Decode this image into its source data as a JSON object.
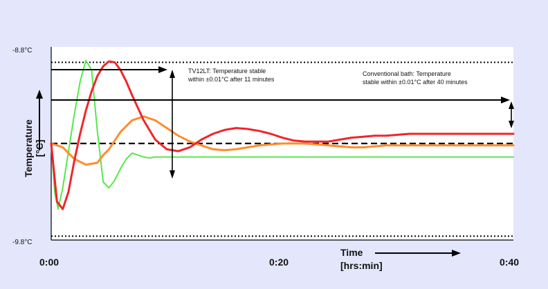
{
  "chart_data": {
    "type": "line",
    "ylabel": {
      "line1": "Temperature",
      "line2": "[°C]"
    },
    "xlabel": {
      "line1": "Time",
      "line2": "[hrs:min]"
    },
    "y_ticks": [
      "-8.8°C",
      "-9.8°C"
    ],
    "x_ticks": [
      "0:00",
      "0:20",
      "0:40"
    ],
    "x_range_minutes": [
      0,
      40
    ],
    "y_range": [
      -9.8,
      -8.8
    ],
    "setpoint": -9.3,
    "band_upper": -8.88,
    "band_lower": -9.78,
    "grid": false,
    "annotations": {
      "tv12lt": {
        "line1": "TV12LT: Temperature stable",
        "line2": "within ±0.01°C after 11 minutes",
        "x_minutes": 10
      },
      "conventional": {
        "line1": "Conventional bath: Temperature",
        "line2": "stable within ±0.01°C after 40 minutes",
        "x_minutes": 40
      }
    },
    "series": [
      {
        "color": "#55e84a",
        "x": [
          0,
          0.3,
          0.6,
          1,
          1.5,
          2,
          2.5,
          3,
          3.5,
          4,
          4.5,
          5,
          5.5,
          6,
          6.5,
          7,
          7.5,
          8,
          8.5,
          9,
          9.5,
          10,
          11,
          12,
          13,
          14,
          16,
          18,
          20,
          22,
          24,
          26,
          28,
          30,
          32,
          34,
          36,
          38,
          40
        ],
        "y": [
          -9.3,
          -9.55,
          -9.64,
          -9.53,
          -9.34,
          -9.15,
          -8.98,
          -8.87,
          -8.92,
          -9.24,
          -9.5,
          -9.53,
          -9.49,
          -9.43,
          -9.38,
          -9.35,
          -9.36,
          -9.37,
          -9.375,
          -9.37,
          -9.37,
          -9.37,
          -9.37,
          -9.37,
          -9.37,
          -9.37,
          -9.37,
          -9.37,
          -9.37,
          -9.37,
          -9.37,
          -9.37,
          -9.37,
          -9.37,
          -9.37,
          -9.37,
          -9.37,
          -9.37,
          -9.37
        ]
      },
      {
        "color": "#ff8c2a",
        "x": [
          0,
          1,
          2,
          3,
          4,
          4.5,
          5,
          6,
          7,
          8,
          9,
          10,
          11,
          12,
          13,
          14,
          15,
          16,
          17,
          18,
          19,
          20,
          21,
          22,
          23,
          24,
          25,
          26,
          27,
          28,
          29,
          30,
          31,
          32,
          33,
          34,
          36,
          38,
          40
        ],
        "y": [
          -9.3,
          -9.32,
          -9.38,
          -9.41,
          -9.4,
          -9.36,
          -9.33,
          -9.24,
          -9.18,
          -9.16,
          -9.18,
          -9.22,
          -9.26,
          -9.29,
          -9.31,
          -9.33,
          -9.335,
          -9.33,
          -9.32,
          -9.31,
          -9.305,
          -9.3,
          -9.3,
          -9.3,
          -9.305,
          -9.31,
          -9.315,
          -9.32,
          -9.32,
          -9.315,
          -9.31,
          -9.31,
          -9.31,
          -9.31,
          -9.31,
          -9.31,
          -9.31,
          -9.31,
          -9.31
        ]
      },
      {
        "color": "#f0252a",
        "x": [
          0,
          0.5,
          1,
          1.5,
          2,
          2.5,
          3,
          3.5,
          4,
          4.5,
          5,
          5.5,
          6,
          6.5,
          7,
          8,
          9,
          10,
          11,
          12,
          13,
          14,
          15,
          16,
          17,
          18,
          19,
          20,
          21,
          22,
          23,
          24,
          25,
          26,
          27,
          28,
          29,
          30,
          31,
          32,
          33,
          34,
          35,
          36,
          37,
          38,
          39,
          40
        ],
        "y": [
          -9.3,
          -9.6,
          -9.64,
          -9.55,
          -9.39,
          -9.25,
          -9.13,
          -9.03,
          -8.95,
          -8.9,
          -8.875,
          -8.88,
          -8.92,
          -8.98,
          -9.05,
          -9.18,
          -9.28,
          -9.33,
          -9.34,
          -9.32,
          -9.28,
          -9.25,
          -9.23,
          -9.22,
          -9.225,
          -9.235,
          -9.25,
          -9.27,
          -9.285,
          -9.29,
          -9.29,
          -9.29,
          -9.28,
          -9.27,
          -9.265,
          -9.26,
          -9.26,
          -9.255,
          -9.25,
          -9.25,
          -9.25,
          -9.25,
          -9.25,
          -9.25,
          -9.25,
          -9.25,
          -9.25,
          -9.25
        ]
      }
    ]
  }
}
